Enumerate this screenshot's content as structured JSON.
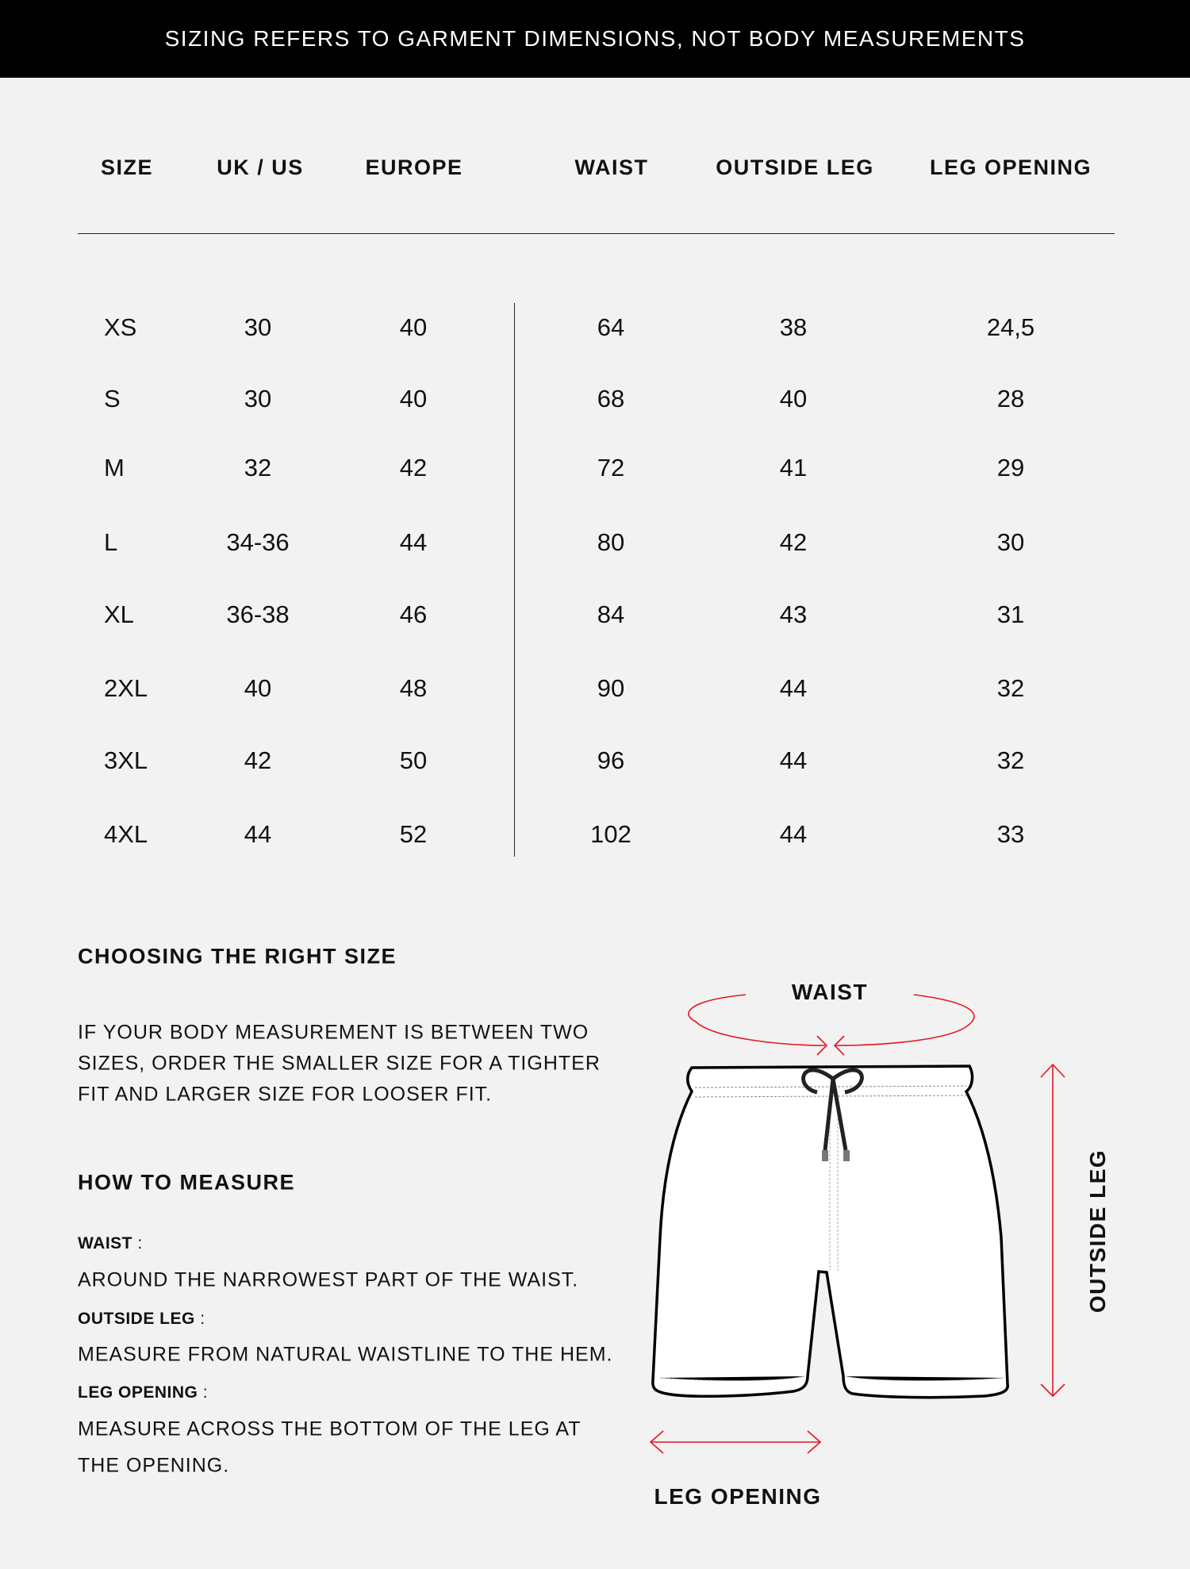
{
  "banner": "SIZING REFERS TO GARMENT DIMENSIONS, NOT BODY MEASUREMENTS",
  "table": {
    "headers": [
      "SIZE",
      "UK / US",
      "EUROPE",
      "WAIST",
      "OUTSIDE LEG",
      "LEG OPENING"
    ],
    "rows": [
      [
        "XS",
        "30",
        "40",
        "64",
        "38",
        "24,5"
      ],
      [
        "S",
        "30",
        "40",
        "68",
        "40",
        "28"
      ],
      [
        "M",
        "32",
        "42",
        "72",
        "41",
        "29"
      ],
      [
        "L",
        "34-36",
        "44",
        "80",
        "42",
        "30"
      ],
      [
        "XL",
        "36-38",
        "46",
        "84",
        "43",
        "31"
      ],
      [
        "2XL",
        "40",
        "48",
        "90",
        "44",
        "32"
      ],
      [
        "3XL",
        "42",
        "50",
        "96",
        "44",
        "32"
      ],
      [
        "4XL",
        "44",
        "52",
        "102",
        "44",
        "33"
      ]
    ]
  },
  "choosing": {
    "title": "CHOOSING THE RIGHT SIZE",
    "lines": [
      "IF YOUR BODY MEASUREMENT IS BETWEEN TWO",
      "SIZES, ORDER THE SMALLER SIZE FOR A TIGHTER",
      "FIT AND LARGER SIZE FOR LOOSER FIT."
    ]
  },
  "measure": {
    "title": "HOW TO MEASURE",
    "waist_label": "WAIST",
    "waist_text": "AROUND THE NARROWEST PART OF THE WAIST.",
    "outside_label": "OUTSIDE LEG",
    "outside_text": "MEASURE FROM NATURAL WAISTLINE TO THE HEM.",
    "leg_label": "LEG OPENING",
    "leg_text_1": "MEASURE ACROSS THE BOTTOM OF THE LEG AT",
    "leg_text_2": "THE OPENING.",
    "colon": " :"
  },
  "diagram": {
    "waist": "WAIST",
    "outside_leg": "OUTSIDE LEG",
    "leg_opening": "LEG OPENING",
    "arrow_color": "#e8141c"
  }
}
